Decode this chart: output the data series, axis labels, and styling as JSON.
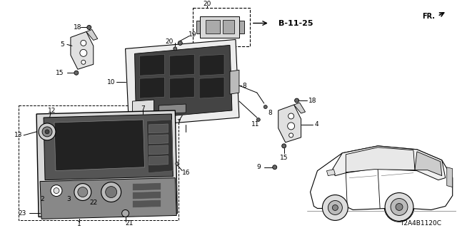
{
  "bg_color": "#ffffff",
  "diagram_code": "T2A4B1120C",
  "reference_label": "B-11-25",
  "fr_label": "FR.",
  "line_color": "#000000",
  "gray_fill": "#e8e8e8",
  "dark_fill": "#555555",
  "mid_fill": "#999999",
  "font_size": 6.5,
  "label_font_size": 7,
  "bold_font_size": 8
}
